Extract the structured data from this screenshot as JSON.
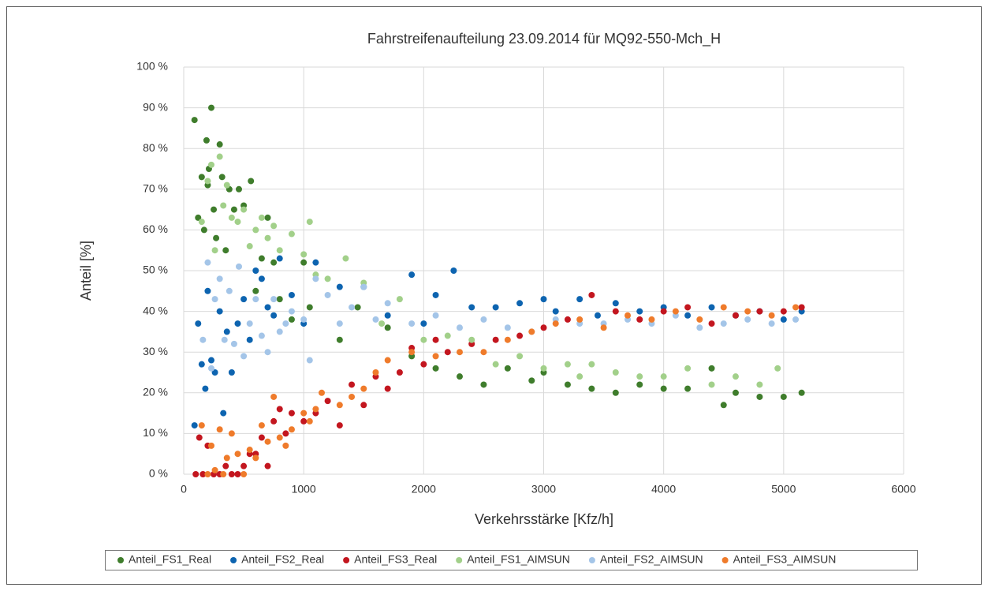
{
  "chart_data": {
    "type": "scatter",
    "title": "Fahrstreifenaufteilung 23.09.2014 für MQ92-550-Mch_H",
    "x_label": "Verkehrsstärke [Kfz/h]",
    "y_label": "Anteil [%]",
    "xlim": [
      0,
      6000
    ],
    "xticks": [
      0,
      1000,
      2000,
      3000,
      4000,
      5000,
      6000
    ],
    "ylim": [
      0,
      100
    ],
    "yticks": [
      {
        "value": 0,
        "label": "0 %"
      },
      {
        "value": 10,
        "label": "10 %"
      },
      {
        "value": 20,
        "label": "20 %"
      },
      {
        "value": 30,
        "label": "30 %"
      },
      {
        "value": 40,
        "label": "40 %"
      },
      {
        "value": 50,
        "label": "50 %"
      },
      {
        "value": 60,
        "label": "60 %"
      },
      {
        "value": 70,
        "label": "70 %"
      },
      {
        "value": 80,
        "label": "80 %"
      },
      {
        "value": 90,
        "label": "90 %"
      },
      {
        "value": 100,
        "label": "100 %"
      }
    ],
    "grid": true,
    "legend": "bottom",
    "series": [
      {
        "name": "Anteil_FS1_Real",
        "color": "#3f7d2c",
        "x": [
          90,
          120,
          150,
          170,
          190,
          200,
          210,
          230,
          250,
          270,
          300,
          320,
          350,
          380,
          420,
          460,
          500,
          560,
          600,
          650,
          700,
          750,
          800,
          900,
          1000,
          1050,
          1300,
          1450,
          1700,
          1900,
          2100,
          2300,
          2500,
          2700,
          2900,
          3000,
          3200,
          3400,
          3600,
          3800,
          4000,
          4200,
          4400,
          4500,
          4600,
          4800,
          5000,
          5150
        ],
        "values": [
          87,
          63,
          73,
          60,
          82,
          71,
          75,
          90,
          65,
          58,
          81,
          73,
          55,
          70,
          65,
          70,
          66,
          72,
          45,
          53,
          63,
          52,
          43,
          38,
          52,
          41,
          33,
          41,
          36,
          29,
          26,
          24,
          22,
          26,
          23,
          25,
          22,
          21,
          20,
          22,
          21,
          21,
          26,
          17,
          20,
          19,
          19,
          20
        ]
      },
      {
        "name": "Anteil_FS2_Real",
        "color": "#0d64b0",
        "x": [
          90,
          120,
          150,
          180,
          200,
          230,
          260,
          300,
          330,
          360,
          400,
          450,
          500,
          550,
          600,
          650,
          700,
          750,
          800,
          900,
          1000,
          1100,
          1300,
          1500,
          1700,
          1900,
          2000,
          2100,
          2250,
          2400,
          2600,
          2800,
          3000,
          3100,
          3300,
          3450,
          3600,
          3800,
          4000,
          4200,
          4400,
          4600,
          4800,
          5000,
          5150
        ],
        "values": [
          12,
          37,
          27,
          21,
          45,
          28,
          25,
          40,
          15,
          35,
          25,
          37,
          43,
          33,
          50,
          48,
          41,
          39,
          53,
          44,
          37,
          52,
          46,
          46,
          39,
          49,
          37,
          44,
          50,
          41,
          41,
          42,
          43,
          40,
          43,
          39,
          42,
          40,
          41,
          39,
          41,
          39,
          40,
          38,
          40
        ]
      },
      {
        "name": "Anteil_FS3_Real",
        "color": "#c3161f",
        "x": [
          100,
          130,
          160,
          200,
          250,
          300,
          350,
          400,
          450,
          500,
          550,
          600,
          650,
          700,
          750,
          800,
          850,
          900,
          1000,
          1100,
          1200,
          1300,
          1400,
          1500,
          1600,
          1700,
          1800,
          1900,
          2000,
          2100,
          2200,
          2400,
          2600,
          2800,
          3000,
          3200,
          3400,
          3600,
          3800,
          4000,
          4200,
          4400,
          4600,
          4800,
          5000,
          5150
        ],
        "values": [
          0,
          9,
          0,
          7,
          0,
          0,
          2,
          0,
          0,
          2,
          5,
          5,
          9,
          2,
          13,
          16,
          10,
          15,
          13,
          15,
          18,
          12,
          22,
          17,
          24,
          21,
          25,
          31,
          27,
          33,
          30,
          32,
          33,
          34,
          36,
          38,
          44,
          40,
          38,
          40,
          41,
          37,
          39,
          40,
          40,
          41
        ]
      },
      {
        "name": "Anteil_FS1_AIMSUN",
        "color": "#a2d08a",
        "x": [
          150,
          200,
          230,
          260,
          300,
          330,
          360,
          400,
          450,
          500,
          550,
          600,
          650,
          700,
          750,
          800,
          900,
          1000,
          1050,
          1100,
          1200,
          1350,
          1500,
          1650,
          1800,
          2000,
          2200,
          2400,
          2600,
          2800,
          3000,
          3200,
          3300,
          3400,
          3600,
          3800,
          4000,
          4200,
          4400,
          4600,
          4800,
          4950
        ],
        "values": [
          62,
          72,
          76,
          55,
          78,
          66,
          71,
          63,
          62,
          65,
          56,
          60,
          63,
          58,
          61,
          55,
          59,
          54,
          62,
          49,
          48,
          53,
          47,
          37,
          43,
          33,
          34,
          33,
          27,
          29,
          26,
          27,
          24,
          27,
          25,
          24,
          24,
          26,
          22,
          24,
          22,
          26
        ]
      },
      {
        "name": "Anteil_FS2_AIMSUN",
        "color": "#a4c5e8",
        "x": [
          160,
          200,
          230,
          260,
          300,
          340,
          380,
          420,
          460,
          500,
          550,
          600,
          650,
          700,
          750,
          800,
          850,
          900,
          1000,
          1050,
          1100,
          1200,
          1300,
          1400,
          1500,
          1600,
          1700,
          1900,
          2100,
          2300,
          2500,
          2700,
          2900,
          3100,
          3300,
          3500,
          3700,
          3900,
          4100,
          4300,
          4500,
          4700,
          4900,
          5100
        ],
        "values": [
          33,
          52,
          26,
          43,
          48,
          33,
          45,
          32,
          51,
          29,
          37,
          43,
          34,
          30,
          43,
          35,
          37,
          40,
          38,
          28,
          48,
          44,
          37,
          41,
          46,
          38,
          42,
          37,
          39,
          36,
          38,
          36,
          35,
          38,
          37,
          37,
          38,
          37,
          39,
          36,
          37,
          38,
          37,
          38
        ]
      },
      {
        "name": "Anteil_FS3_AIMSUN",
        "color": "#ef7b2b",
        "x": [
          150,
          200,
          230,
          260,
          300,
          330,
          360,
          400,
          450,
          500,
          550,
          600,
          650,
          700,
          750,
          800,
          850,
          900,
          1000,
          1050,
          1100,
          1150,
          1300,
          1400,
          1500,
          1600,
          1700,
          1900,
          2100,
          2300,
          2500,
          2700,
          2900,
          3100,
          3300,
          3500,
          3700,
          3900,
          4100,
          4300,
          4500,
          4700,
          4900,
          5100
        ],
        "values": [
          12,
          0,
          7,
          1,
          11,
          0,
          4,
          10,
          5,
          0,
          6,
          4,
          12,
          8,
          19,
          9,
          7,
          11,
          15,
          13,
          16,
          20,
          17,
          19,
          21,
          25,
          28,
          30,
          29,
          30,
          30,
          33,
          35,
          37,
          38,
          36,
          39,
          38,
          40,
          38,
          41,
          40,
          39,
          41
        ]
      }
    ]
  }
}
